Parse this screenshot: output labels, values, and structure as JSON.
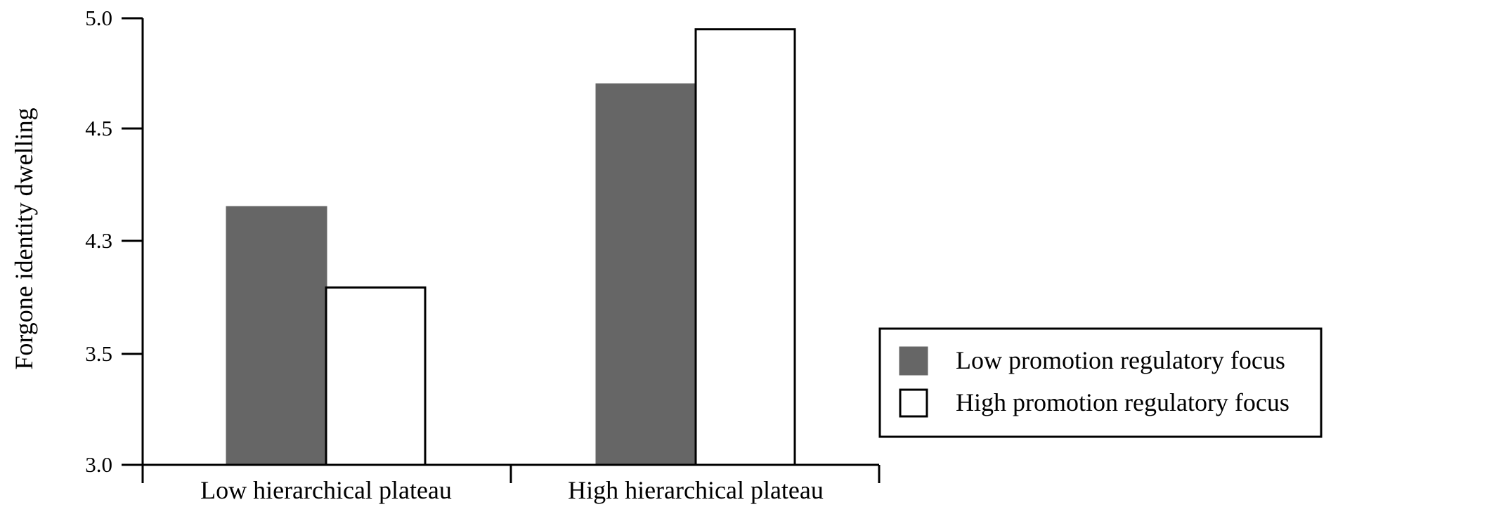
{
  "chart_data": {
    "type": "bar",
    "title": "",
    "xlabel": "",
    "ylabel": "Forgone identity dwelling",
    "categories": [
      "Low hierarchical plateau",
      "High hierarchical plateau"
    ],
    "series": [
      {
        "name": "Low promotion regulatory focus",
        "values": [
          4.36,
          4.7
        ]
      },
      {
        "name": "High promotion regulatory focus",
        "values": [
          3.97,
          4.95
        ]
      }
    ],
    "y_tick_labels": [
      "3.0",
      "3.5",
      "4.3",
      "4.5",
      "5.0"
    ],
    "ylim": [
      3.0,
      5.0
    ],
    "colors": {
      "Low promotion regulatory focus": "#666666",
      "High promotion regulatory focus": "#ffffff"
    },
    "bar_outline": "#000000",
    "grid": false,
    "legend_position": "right"
  }
}
